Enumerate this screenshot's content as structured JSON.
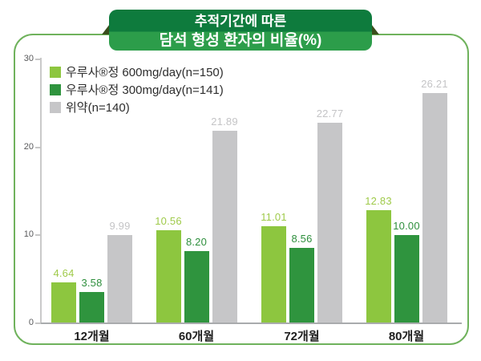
{
  "title": {
    "line1": "추적기간에 따른",
    "line2": "담석 형성 환자의 비율(%)"
  },
  "legend": [
    {
      "label": "우루사®정 600mg/day(n=150)",
      "color": "#8DC63F"
    },
    {
      "label": "우루사®정 300mg/day(n=141)",
      "color": "#2F943E"
    },
    {
      "label": "위약(n=140)",
      "color": "#C6C6C8"
    }
  ],
  "chart_data": {
    "type": "bar",
    "title": "추적기간에 따른 담석 형성 환자의 비율(%)",
    "categories": [
      "12개월",
      "60개월",
      "72개월",
      "80개월"
    ],
    "series": [
      {
        "name": "우루사®정 600mg/day(n=150)",
        "color": "#8DC63F",
        "label_color": "#9FCA4A",
        "values": [
          4.64,
          10.56,
          11.01,
          12.83
        ]
      },
      {
        "name": "우루사®정 300mg/day(n=141)",
        "color": "#2F943E",
        "label_color": "#2E8F3D",
        "values": [
          3.58,
          8.2,
          8.56,
          10.0
        ]
      },
      {
        "name": "위약(n=140)",
        "color": "#C6C6C8",
        "label_color": "#C4C4C6",
        "values": [
          9.99,
          21.89,
          22.77,
          26.21
        ]
      }
    ],
    "ylim": [
      0,
      30
    ],
    "yticks": [
      0,
      10,
      20,
      30
    ],
    "ytick_labels": [
      "0",
      "10",
      "20",
      "30"
    ],
    "grid": false,
    "legend_position": "top-left",
    "value_labels": true
  },
  "colors": {
    "card_border": "#6FB25C",
    "ribbon_top": "#0E7B3D",
    "ribbon_bottom": "#2C9D4A",
    "ribbon_fold": "#3A4E1C",
    "axis_line": "#CACACA",
    "baseline": "#A9ABAD",
    "tick_text": "#58595B",
    "x_label_text": "#1F1F1F"
  }
}
